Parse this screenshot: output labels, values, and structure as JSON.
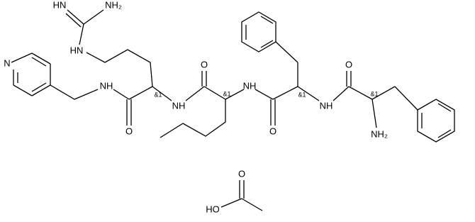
{
  "labels": [
    "HN",
    "NH₂",
    "HN",
    "N",
    "NH",
    "O",
    "&1",
    "NH",
    "O",
    "&1",
    "NH",
    "O",
    "&1",
    "NH",
    "O",
    "&1",
    "NH₂",
    "O",
    "HO"
  ]
}
